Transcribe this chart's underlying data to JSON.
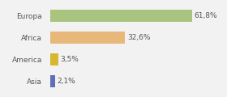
{
  "categories": [
    "Europa",
    "Africa",
    "America",
    "Asia"
  ],
  "values": [
    61.8,
    32.6,
    3.5,
    2.1
  ],
  "labels": [
    "61,8%",
    "32,6%",
    "3,5%",
    "2,1%"
  ],
  "bar_colors": [
    "#a8c47e",
    "#e8b87a",
    "#d4b830",
    "#6070b8"
  ],
  "background_color": "#f2f2f2",
  "xlim": [
    0,
    75
  ],
  "bar_height": 0.55,
  "label_fontsize": 6.5,
  "tick_fontsize": 6.5
}
